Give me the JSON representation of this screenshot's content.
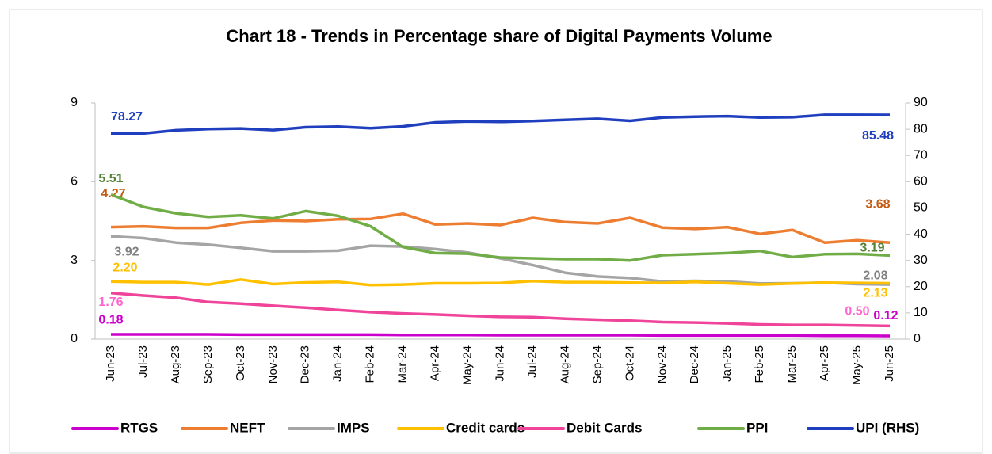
{
  "chart_data": {
    "type": "line",
    "title": "Chart 18 - Trends in Percentage share of Digital Payments Volume",
    "categories": [
      "Jun-23",
      "Jul-23",
      "Aug-23",
      "Sep-23",
      "Oct-23",
      "Nov-23",
      "Dec-23",
      "Jan-24",
      "Feb-24",
      "Mar-24",
      "Apr-24",
      "May-24",
      "Jun-24",
      "Jul-24",
      "Aug-24",
      "Sep-24",
      "Oct-24",
      "Nov-24",
      "Dec-24",
      "Jan-25",
      "Feb-25",
      "Mar-25",
      "Apr-25",
      "May-25",
      "Jun-25"
    ],
    "ylim": [
      0,
      9
    ],
    "yticks": [
      0,
      3,
      6,
      9
    ],
    "y2lim": [
      0,
      90
    ],
    "y2ticks": [
      0,
      10,
      20,
      30,
      40,
      50,
      60,
      70,
      80,
      90
    ],
    "legend": "bottom",
    "series": [
      {
        "name": "RTGS",
        "color": "#cc00cc",
        "label_color": "#cc00cc",
        "values": [
          0.18,
          0.18,
          0.18,
          0.18,
          0.17,
          0.17,
          0.17,
          0.17,
          0.17,
          0.16,
          0.16,
          0.16,
          0.15,
          0.15,
          0.15,
          0.15,
          0.15,
          0.14,
          0.14,
          0.14,
          0.14,
          0.14,
          0.13,
          0.13,
          0.12
        ],
        "value_labels": [
          "0.18",
          null,
          null,
          null,
          null,
          null,
          null,
          null,
          null,
          null,
          null,
          null,
          null,
          null,
          null,
          null,
          null,
          null,
          null,
          null,
          null,
          null,
          null,
          null,
          "0.12"
        ]
      },
      {
        "name": "NEFT",
        "color": "#ed7d31",
        "label_color": "#c55a11",
        "values": [
          4.27,
          4.3,
          4.24,
          4.24,
          4.43,
          4.52,
          4.5,
          4.57,
          4.58,
          4.78,
          4.37,
          4.41,
          4.35,
          4.62,
          4.46,
          4.41,
          4.62,
          4.25,
          4.2,
          4.27,
          4.01,
          4.16,
          3.68,
          3.77,
          3.68
        ],
        "value_labels": [
          "4.27",
          null,
          null,
          null,
          null,
          null,
          null,
          null,
          null,
          null,
          null,
          null,
          null,
          null,
          null,
          null,
          null,
          null,
          null,
          null,
          null,
          null,
          null,
          null,
          "3.68"
        ]
      },
      {
        "name": "IMPS",
        "color": "#a5a5a5",
        "label_color": "#7f7f7f",
        "values": [
          3.92,
          3.85,
          3.68,
          3.6,
          3.48,
          3.35,
          3.35,
          3.37,
          3.56,
          3.53,
          3.43,
          3.3,
          3.08,
          2.82,
          2.53,
          2.39,
          2.33,
          2.2,
          2.22,
          2.2,
          2.12,
          2.13,
          2.15,
          2.1,
          2.08
        ],
        "value_labels": [
          "3.92",
          null,
          null,
          null,
          null,
          null,
          null,
          null,
          null,
          null,
          null,
          null,
          null,
          null,
          null,
          null,
          null,
          null,
          null,
          null,
          null,
          null,
          null,
          null,
          "2.08"
        ]
      },
      {
        "name": "Credit cards",
        "color": "#ffc000",
        "label_color": "#ffc000",
        "values": [
          2.2,
          2.17,
          2.17,
          2.08,
          2.27,
          2.1,
          2.16,
          2.18,
          2.06,
          2.08,
          2.13,
          2.13,
          2.14,
          2.21,
          2.17,
          2.17,
          2.15,
          2.14,
          2.18,
          2.13,
          2.08,
          2.12,
          2.15,
          2.14,
          2.13
        ],
        "value_labels": [
          "2.20",
          null,
          null,
          null,
          null,
          null,
          null,
          null,
          null,
          null,
          null,
          null,
          null,
          null,
          null,
          null,
          null,
          null,
          null,
          null,
          null,
          null,
          null,
          null,
          "2.13"
        ]
      },
      {
        "name": "Debit Cards",
        "color": "#f0439a",
        "label_color": "#ff66cc",
        "values": [
          1.76,
          1.66,
          1.58,
          1.41,
          1.35,
          1.27,
          1.2,
          1.11,
          1.03,
          0.98,
          0.94,
          0.89,
          0.85,
          0.84,
          0.78,
          0.74,
          0.7,
          0.65,
          0.63,
          0.6,
          0.56,
          0.54,
          0.54,
          0.52,
          0.5
        ],
        "value_labels": [
          "1.76",
          null,
          null,
          null,
          null,
          null,
          null,
          null,
          null,
          null,
          null,
          null,
          null,
          null,
          null,
          null,
          null,
          null,
          null,
          null,
          null,
          null,
          null,
          null,
          "0.50"
        ]
      },
      {
        "name": "PPI",
        "color": "#70ad47",
        "label_color": "#548235",
        "values": [
          5.51,
          5.04,
          4.8,
          4.66,
          4.72,
          4.6,
          4.88,
          4.7,
          4.3,
          3.51,
          3.28,
          3.26,
          3.11,
          3.08,
          3.05,
          3.05,
          3.0,
          3.2,
          3.24,
          3.28,
          3.36,
          3.13,
          3.24,
          3.25,
          3.19
        ],
        "value_labels": [
          "5.51",
          null,
          null,
          null,
          null,
          null,
          null,
          null,
          null,
          null,
          null,
          null,
          null,
          null,
          null,
          null,
          null,
          null,
          null,
          null,
          null,
          null,
          null,
          null,
          "3.19"
        ]
      },
      {
        "name": "UPI (RHS)",
        "color": "#1f3fbf",
        "label_color": "#1f3fbf",
        "axis": "y2",
        "values": [
          78.27,
          78.4,
          79.6,
          80.1,
          80.3,
          79.7,
          80.8,
          81.0,
          80.4,
          81.1,
          82.6,
          83.0,
          82.8,
          83.1,
          83.6,
          84.0,
          83.2,
          84.5,
          84.8,
          85.0,
          84.5,
          84.6,
          85.5,
          85.5,
          85.48
        ]
      }
    ]
  }
}
